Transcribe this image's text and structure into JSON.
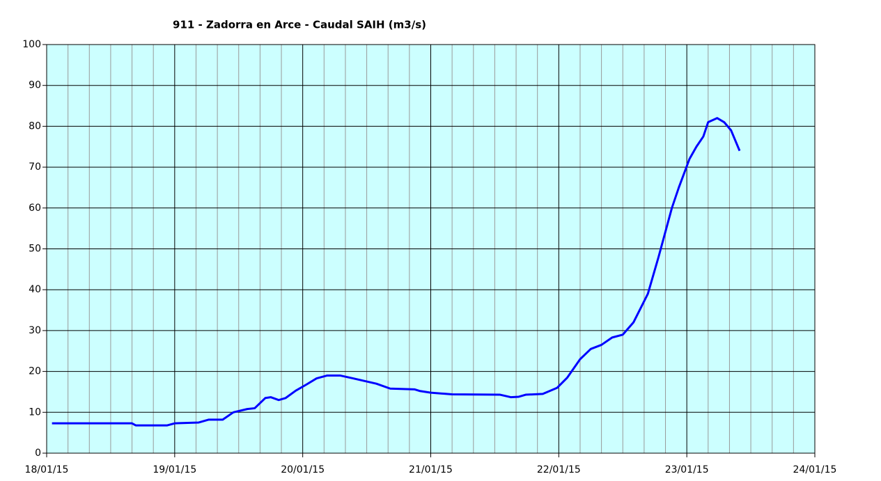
{
  "chart_data": {
    "type": "line",
    "title": "911 - Zadorra en Arce - Caudal SAIH (m3/s)",
    "xlim": [
      0,
      144
    ],
    "xticks": [
      {
        "value": 0,
        "label": "18/01/15"
      },
      {
        "value": 24,
        "label": "19/01/15"
      },
      {
        "value": 48,
        "label": "20/01/15"
      },
      {
        "value": 72,
        "label": "21/01/15"
      },
      {
        "value": 96,
        "label": "22/01/15"
      },
      {
        "value": 120,
        "label": "23/01/15"
      },
      {
        "value": 144,
        "label": "24/01/15"
      }
    ],
    "xminorticks": [
      4,
      8,
      12,
      16,
      20,
      28,
      32,
      36,
      40,
      44,
      52,
      56,
      60,
      64,
      68,
      76,
      80,
      84,
      88,
      92,
      100,
      104,
      108,
      112,
      116,
      124,
      128,
      132,
      136,
      140
    ],
    "ylim": [
      0,
      100
    ],
    "yticks": [
      0,
      10,
      20,
      30,
      40,
      50,
      60,
      70,
      80,
      90,
      100
    ],
    "grid": true,
    "plot_background": "#ccffff",
    "series": [
      {
        "color": "#0000ff",
        "x": [
          1,
          16,
          16.7,
          22.6,
          24,
          28.5,
          30.4,
          33,
          35,
          37.6,
          39,
          41,
          42,
          43.5,
          44.8,
          46.7,
          48.7,
          50.6,
          52.6,
          55,
          57.8,
          61.8,
          64.4,
          69,
          70,
          72,
          76,
          85,
          87,
          88.5,
          89.8,
          93,
          95.7,
          97.6,
          100,
          102,
          104,
          106,
          108,
          110,
          112.7,
          114.7,
          117.2,
          118.5,
          120.5,
          121.8,
          123.1,
          124,
          125.7,
          127,
          128.3,
          129.9
        ],
        "values": [
          7.3,
          7.3,
          6.8,
          6.8,
          7.3,
          7.5,
          8.2,
          8.2,
          10,
          10.8,
          11,
          13.5,
          13.7,
          13,
          13.5,
          15.3,
          16.8,
          18.3,
          19,
          19,
          18.2,
          17,
          15.8,
          15.6,
          15.2,
          14.8,
          14.4,
          14.3,
          13.7,
          13.8,
          14.3,
          14.5,
          16,
          18.5,
          23,
          25.5,
          26.5,
          28.3,
          29,
          32,
          39,
          48,
          60,
          65,
          72,
          75,
          77.5,
          81,
          82,
          81,
          79,
          74
        ]
      }
    ]
  }
}
